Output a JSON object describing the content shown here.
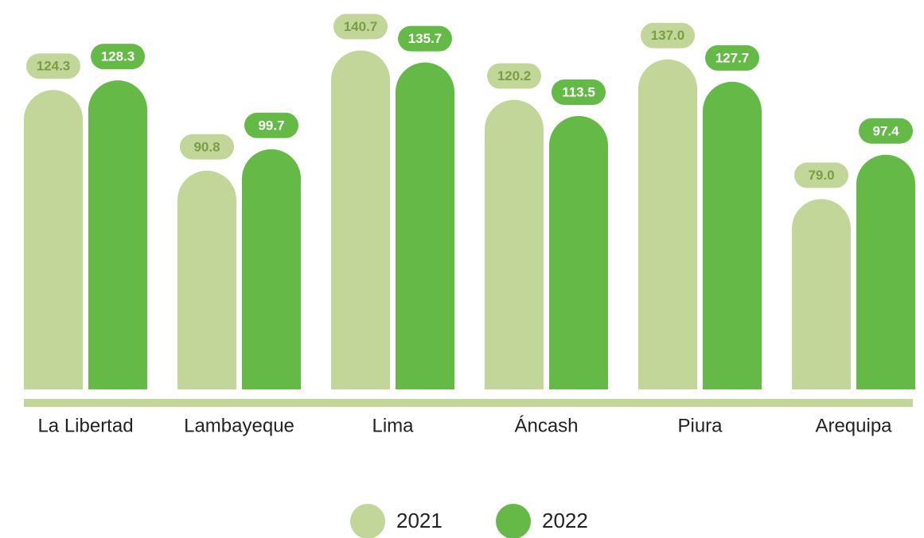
{
  "chart_data": {
    "type": "bar",
    "categories": [
      "La Libertad",
      "Lambayeque",
      "Lima",
      "Áncash",
      "Piura",
      "Arequipa"
    ],
    "series": [
      {
        "name": "2021",
        "color": "#c3d699",
        "values": [
          124.3,
          90.8,
          140.7,
          120.2,
          137,
          79
        ],
        "value_labels": [
          "124.3",
          "90.8",
          "140.7",
          "120.2",
          "137.0",
          "79.0"
        ]
      },
      {
        "name": "2022",
        "color": "#64b947",
        "values": [
          128.3,
          99.7,
          135.7,
          113.5,
          127.7,
          97.4
        ],
        "value_labels": [
          "128.3",
          "99.7",
          "135.7",
          "113.5",
          "127.7",
          "97.4"
        ]
      }
    ],
    "ylim": [
      0,
      161
    ]
  }
}
